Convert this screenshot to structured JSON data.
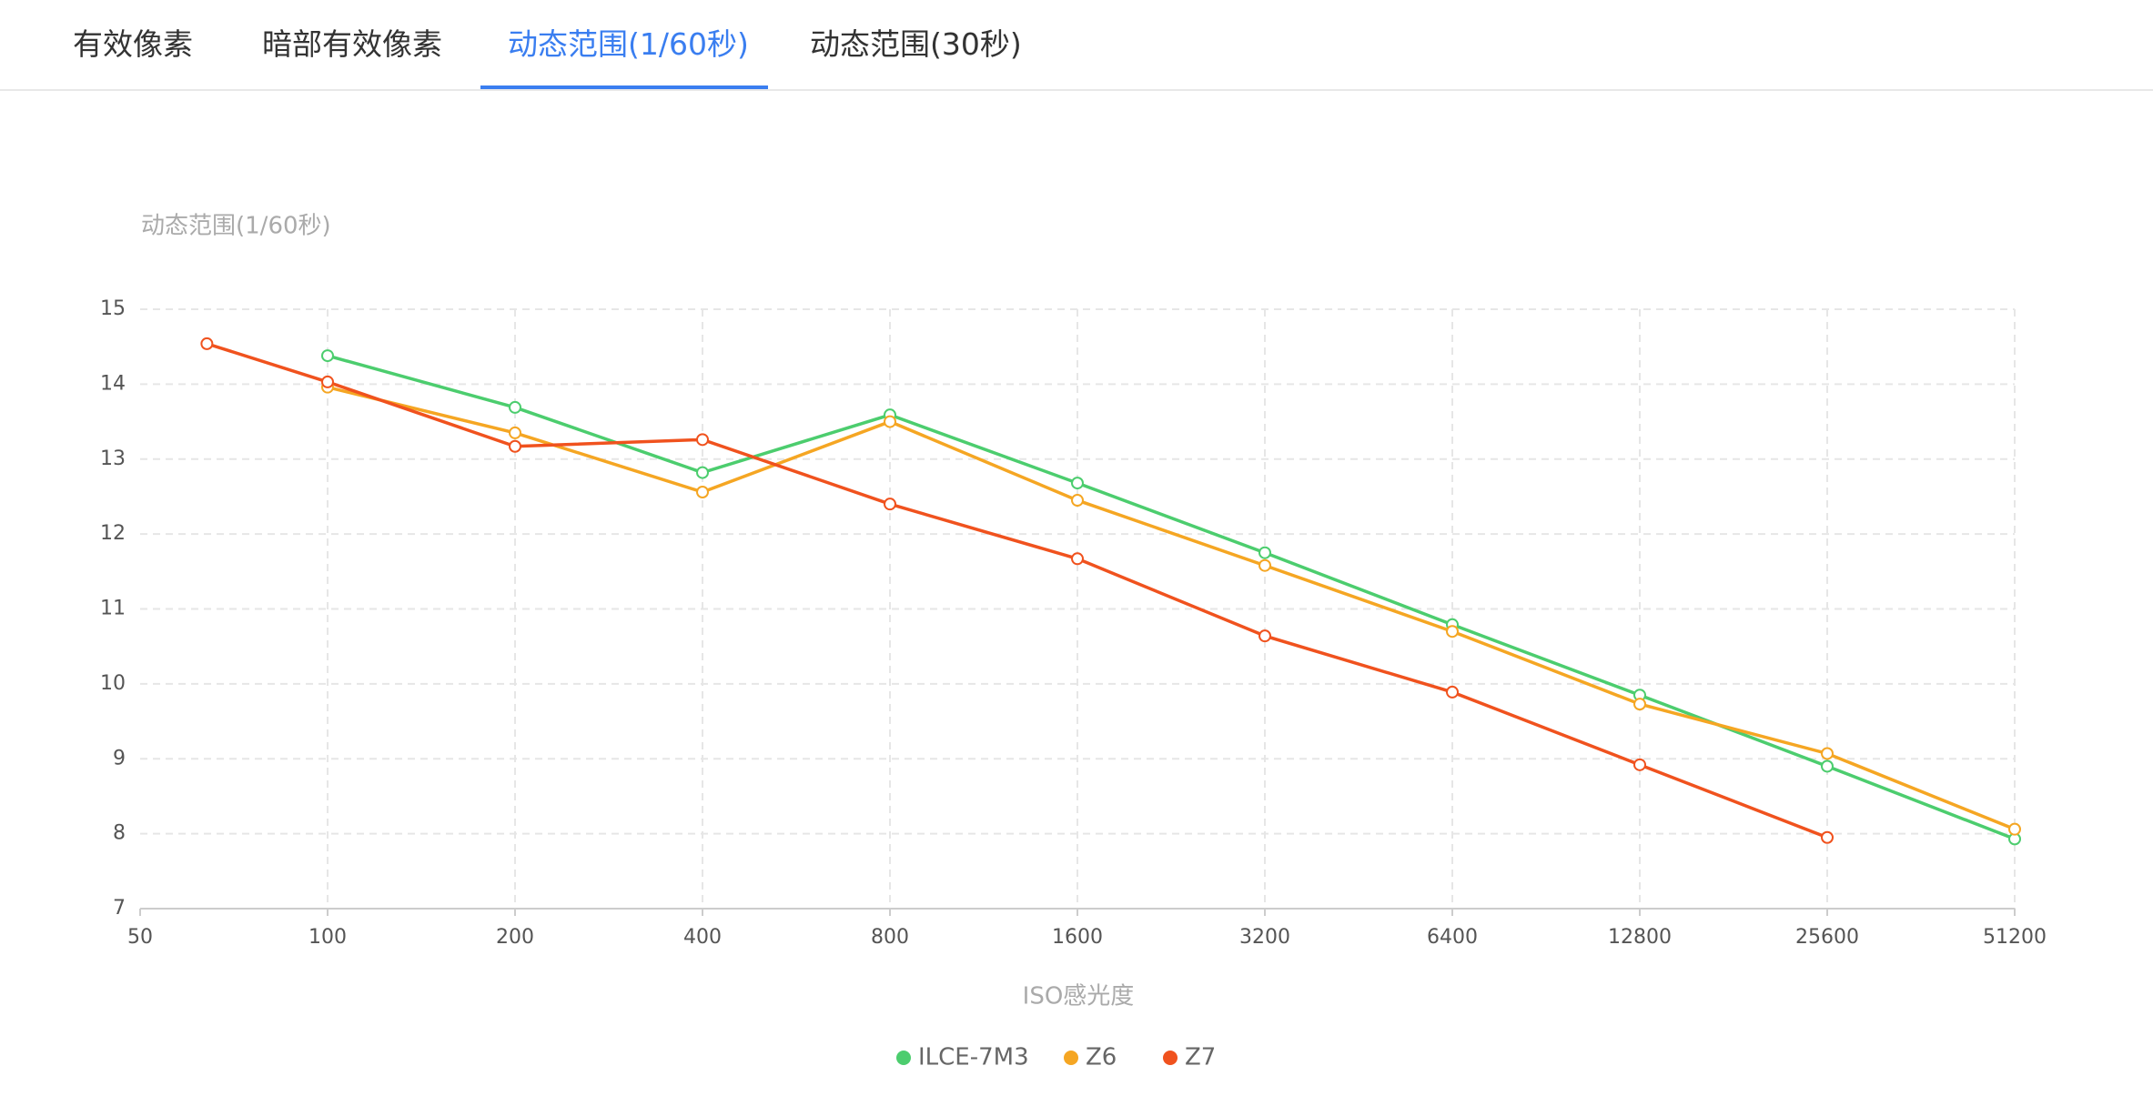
{
  "tabs": [
    "有效像素",
    "暗部有效像素",
    "动态范围(1/60秒)",
    "动态范围(30秒)"
  ],
  "active_tab": 2,
  "chart_data": {
    "type": "line",
    "title": "动态范围(1/60秒)",
    "x_label": "ISO感光度",
    "x": [
      64,
      100,
      200,
      400,
      800,
      1600,
      3200,
      6400,
      12800,
      25600,
      51200
    ],
    "xscale": "log",
    "xlim": [
      50,
      51200
    ],
    "xticks": [
      50,
      100,
      200,
      400,
      800,
      1600,
      3200,
      6400,
      12800,
      25600,
      51200
    ],
    "ylim": [
      7,
      15
    ],
    "yticks": [
      7,
      8,
      9,
      10,
      11,
      12,
      13,
      14,
      15
    ],
    "grid": true,
    "legend": "bottom",
    "series": [
      {
        "name": "ILCE-7M3",
        "color": "#4ccd6e",
        "values": [
          null,
          14.38,
          13.69,
          12.82,
          13.59,
          12.68,
          11.75,
          10.79,
          9.85,
          8.9,
          7.93
        ]
      },
      {
        "name": "Z6",
        "color": "#f5a623",
        "values": [
          null,
          13.96,
          13.35,
          12.56,
          13.5,
          12.45,
          11.58,
          10.7,
          9.73,
          9.07,
          8.06
        ]
      },
      {
        "name": "Z7",
        "color": "#f0521e",
        "values": [
          14.54,
          14.03,
          13.17,
          13.26,
          12.4,
          11.67,
          10.64,
          9.89,
          8.92,
          7.95,
          null
        ]
      }
    ]
  }
}
